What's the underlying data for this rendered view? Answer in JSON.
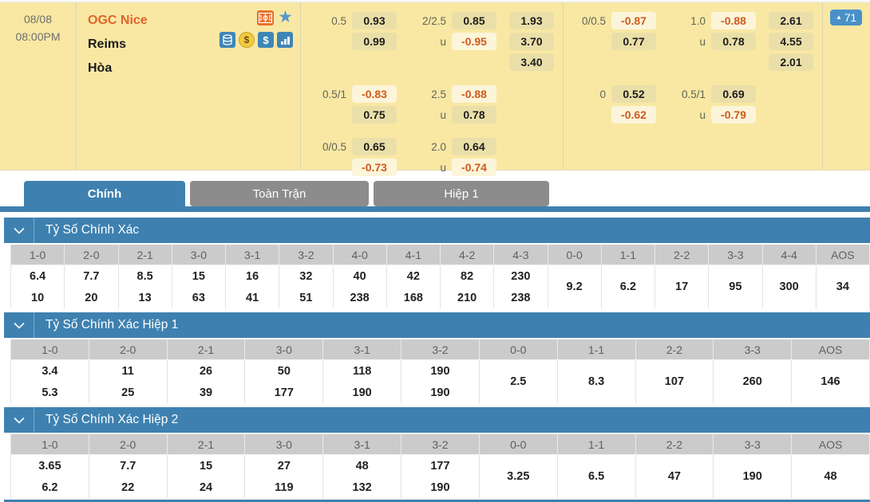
{
  "match": {
    "date": "08/08",
    "time": "08:00PM",
    "home_team": "OGC Nice",
    "away_team": "Reims",
    "draw_label": "Hòa",
    "update_count": "71"
  },
  "icons": [
    "pitch-icon",
    "favorite-star-icon",
    "coins-stack-icon",
    "coin-icon",
    "dollar-icon",
    "stats-bars-icon"
  ],
  "odds": {
    "under_label": "u",
    "groups": [
      {
        "name": "full-time",
        "blocks": [
          {
            "hdp_line": "0.5",
            "hdp": [
              "0.93",
              "0.99"
            ],
            "ou_line": "2/2.5",
            "ou": [
              "0.85",
              "-0.95"
            ],
            "x12": [
              "1.93",
              "3.70",
              "3.40"
            ]
          },
          {
            "hdp_line": "0.5/1",
            "hdp": [
              "-0.83",
              "0.75"
            ],
            "ou_line": "2.5",
            "ou": [
              "-0.88",
              "0.78"
            ]
          },
          {
            "hdp_line": "0/0.5",
            "hdp": [
              "0.65",
              "-0.73"
            ],
            "ou_line": "2.0",
            "ou": [
              "0.64",
              "-0.74"
            ]
          }
        ]
      },
      {
        "name": "first-half",
        "blocks": [
          {
            "hdp_line": "0/0.5",
            "hdp": [
              "-0.87",
              "0.77"
            ],
            "ou_line": "1.0",
            "ou": [
              "-0.88",
              "0.78"
            ],
            "x12": [
              "2.61",
              "4.55",
              "2.01"
            ]
          },
          {
            "hdp_line": "0",
            "hdp": [
              "0.52",
              "-0.62"
            ],
            "ou_line": "0.5/1",
            "ou": [
              "0.69",
              "-0.79"
            ]
          }
        ]
      }
    ]
  },
  "tabs": [
    {
      "label": "Chính",
      "active": true
    },
    {
      "label": "Toàn Trận",
      "active": false
    },
    {
      "label": "Hiệp 1",
      "active": false
    }
  ],
  "sections": [
    {
      "title": "Tỷ Số Chính Xác",
      "columns": [
        {
          "label": "1-0",
          "odds": [
            "6.4",
            "10"
          ]
        },
        {
          "label": "2-0",
          "odds": [
            "7.7",
            "20"
          ]
        },
        {
          "label": "2-1",
          "odds": [
            "8.5",
            "13"
          ]
        },
        {
          "label": "3-0",
          "odds": [
            "15",
            "63"
          ]
        },
        {
          "label": "3-1",
          "odds": [
            "16",
            "41"
          ]
        },
        {
          "label": "3-2",
          "odds": [
            "32",
            "51"
          ]
        },
        {
          "label": "4-0",
          "odds": [
            "40",
            "238"
          ]
        },
        {
          "label": "4-1",
          "odds": [
            "42",
            "168"
          ]
        },
        {
          "label": "4-2",
          "odds": [
            "82",
            "210"
          ]
        },
        {
          "label": "4-3",
          "odds": [
            "230",
            "238"
          ]
        },
        {
          "label": "0-0",
          "odds": [
            "9.2"
          ]
        },
        {
          "label": "1-1",
          "odds": [
            "6.2"
          ]
        },
        {
          "label": "2-2",
          "odds": [
            "17"
          ]
        },
        {
          "label": "3-3",
          "odds": [
            "95"
          ]
        },
        {
          "label": "4-4",
          "odds": [
            "300"
          ]
        },
        {
          "label": "AOS",
          "odds": [
            "34"
          ]
        }
      ]
    },
    {
      "title": "Tỷ Số Chính Xác Hiệp 1",
      "columns": [
        {
          "label": "1-0",
          "odds": [
            "3.4",
            "5.3"
          ]
        },
        {
          "label": "2-0",
          "odds": [
            "11",
            "25"
          ]
        },
        {
          "label": "2-1",
          "odds": [
            "26",
            "39"
          ]
        },
        {
          "label": "3-0",
          "odds": [
            "50",
            "177"
          ]
        },
        {
          "label": "3-1",
          "odds": [
            "118",
            "190"
          ]
        },
        {
          "label": "3-2",
          "odds": [
            "190",
            "190"
          ]
        },
        {
          "label": "0-0",
          "odds": [
            "2.5"
          ]
        },
        {
          "label": "1-1",
          "odds": [
            "8.3"
          ]
        },
        {
          "label": "2-2",
          "odds": [
            "107"
          ]
        },
        {
          "label": "3-3",
          "odds": [
            "260"
          ]
        },
        {
          "label": "AOS",
          "odds": [
            "146"
          ]
        }
      ]
    },
    {
      "title": "Tỷ Số Chính Xác Hiệp 2",
      "columns": [
        {
          "label": "1-0",
          "odds": [
            "3.65",
            "6.2"
          ]
        },
        {
          "label": "2-0",
          "odds": [
            "7.7",
            "22"
          ]
        },
        {
          "label": "2-1",
          "odds": [
            "15",
            "24"
          ]
        },
        {
          "label": "3-0",
          "odds": [
            "27",
            "119"
          ]
        },
        {
          "label": "3-1",
          "odds": [
            "48",
            "132"
          ]
        },
        {
          "label": "3-2",
          "odds": [
            "177",
            "190"
          ]
        },
        {
          "label": "0-0",
          "odds": [
            "3.25"
          ]
        },
        {
          "label": "1-1",
          "odds": [
            "6.5"
          ]
        },
        {
          "label": "2-2",
          "odds": [
            "47"
          ]
        },
        {
          "label": "3-3",
          "odds": [
            "190"
          ]
        },
        {
          "label": "AOS",
          "odds": [
            "48"
          ]
        }
      ]
    }
  ],
  "colors": {
    "accent_blue": "#3e81b0",
    "badge_blue": "#4a90c8",
    "negative_orange": "#cf5a1d",
    "panel_yellow": "#f8e8a3"
  }
}
